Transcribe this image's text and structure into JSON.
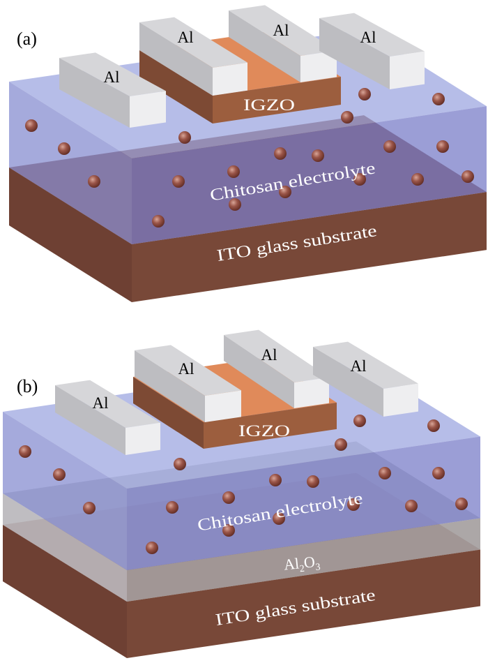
{
  "panels": [
    {
      "tag": "(a)",
      "electrodes": [
        "Al",
        "Al",
        "Al",
        "Al"
      ],
      "channel": "IGZO",
      "electrolyte": "Chitosan electrolyte",
      "substrate": "ITO glass substrate"
    },
    {
      "tag": "(b)",
      "electrodes": [
        "Al",
        "Al",
        "Al",
        "Al"
      ],
      "channel": "IGZO",
      "electrolyte": "Chitosan electrolyte",
      "dielectric": [
        "Al",
        "2",
        "O",
        "3"
      ],
      "substrate": "ITO glass substrate"
    }
  ],
  "colors": {
    "substrate": "#784838",
    "electrolyte": "#7c84d2",
    "dielectric": "#a39d9d",
    "channel_top": "#e08a5a",
    "channel_front": "#9c5e3e",
    "electrode": "#e6e6e8",
    "ion": "#8a4438"
  }
}
